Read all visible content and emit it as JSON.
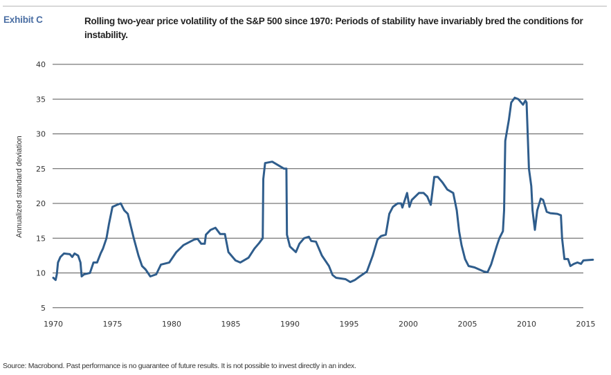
{
  "header": {
    "exhibit_label": "Exhibit C",
    "title": "Rolling two-year price volatility of the S&P 500 since 1970: Periods of stability have invariably bred the conditions for instability."
  },
  "footer": {
    "source": "Source: Macrobond. Past performance is no guarantee of future results. It is not possible to invest directly in an index."
  },
  "colors": {
    "line": "#2f5d8c",
    "exhibit": "#4a6ea3",
    "grid": "#555555"
  },
  "chart_data": {
    "type": "line",
    "title": "Rolling two-year price volatility of the S&P 500 since 1970",
    "xlabel": "",
    "ylabel": "Annualized standard deviation",
    "xlim": [
      1970,
      2015.6
    ],
    "ylim": [
      5,
      40
    ],
    "x_ticks": [
      1970,
      1975,
      1980,
      1985,
      1990,
      1995,
      2000,
      2005,
      2010,
      2015
    ],
    "y_ticks": [
      5,
      10,
      15,
      20,
      25,
      30,
      35,
      40
    ],
    "grid": "horizontal",
    "legend": "none",
    "series": [
      {
        "name": "S&P 500 rolling two-year volatility",
        "points": [
          [
            1970.0,
            9.3
          ],
          [
            1970.2,
            9.0
          ],
          [
            1970.3,
            9.8
          ],
          [
            1970.4,
            11.5
          ],
          [
            1970.6,
            12.3
          ],
          [
            1970.9,
            12.8
          ],
          [
            1971.4,
            12.7
          ],
          [
            1971.6,
            12.3
          ],
          [
            1971.8,
            12.8
          ],
          [
            1972.1,
            12.5
          ],
          [
            1972.3,
            11.5
          ],
          [
            1972.4,
            9.5
          ],
          [
            1972.6,
            9.8
          ],
          [
            1973.1,
            10.0
          ],
          [
            1973.4,
            11.5
          ],
          [
            1973.7,
            11.5
          ],
          [
            1974.0,
            12.8
          ],
          [
            1974.2,
            13.5
          ],
          [
            1974.5,
            15.0
          ],
          [
            1974.7,
            17.0
          ],
          [
            1975.0,
            19.5
          ],
          [
            1975.4,
            19.8
          ],
          [
            1975.7,
            20.0
          ],
          [
            1976.0,
            19.0
          ],
          [
            1976.3,
            18.5
          ],
          [
            1976.8,
            15.0
          ],
          [
            1977.2,
            12.5
          ],
          [
            1977.5,
            11.0
          ],
          [
            1977.8,
            10.5
          ],
          [
            1978.2,
            9.5
          ],
          [
            1978.7,
            9.8
          ],
          [
            1979.1,
            11.2
          ],
          [
            1979.8,
            11.5
          ],
          [
            1980.4,
            13.0
          ],
          [
            1981.0,
            14.0
          ],
          [
            1981.9,
            14.8
          ],
          [
            1982.2,
            14.9
          ],
          [
            1982.5,
            14.2
          ],
          [
            1982.8,
            14.2
          ],
          [
            1982.9,
            15.5
          ],
          [
            1983.3,
            16.2
          ],
          [
            1983.7,
            16.5
          ],
          [
            1984.1,
            15.6
          ],
          [
            1984.5,
            15.6
          ],
          [
            1984.8,
            13.0
          ],
          [
            1985.4,
            11.8
          ],
          [
            1985.8,
            11.5
          ],
          [
            1986.5,
            12.2
          ],
          [
            1987.0,
            13.5
          ],
          [
            1987.4,
            14.3
          ],
          [
            1987.7,
            15.0
          ],
          [
            1987.75,
            23.5
          ],
          [
            1987.9,
            25.8
          ],
          [
            1988.5,
            26.0
          ],
          [
            1988.9,
            25.6
          ],
          [
            1989.5,
            25.0
          ],
          [
            1989.7,
            25.0
          ],
          [
            1989.75,
            15.5
          ],
          [
            1990.0,
            13.8
          ],
          [
            1990.5,
            13.0
          ],
          [
            1990.8,
            14.2
          ],
          [
            1991.2,
            15.0
          ],
          [
            1991.6,
            15.2
          ],
          [
            1991.8,
            14.6
          ],
          [
            1992.2,
            14.5
          ],
          [
            1992.7,
            12.5
          ],
          [
            1993.3,
            11.0
          ],
          [
            1993.6,
            9.7
          ],
          [
            1993.9,
            9.3
          ],
          [
            1994.7,
            9.1
          ],
          [
            1995.1,
            8.7
          ],
          [
            1995.5,
            9.0
          ],
          [
            1995.9,
            9.5
          ],
          [
            1996.5,
            10.2
          ],
          [
            1997.0,
            12.5
          ],
          [
            1997.4,
            14.8
          ],
          [
            1997.7,
            15.3
          ],
          [
            1998.1,
            15.5
          ],
          [
            1998.4,
            18.5
          ],
          [
            1998.7,
            19.5
          ],
          [
            1999.1,
            20.0
          ],
          [
            1999.4,
            20.0
          ],
          [
            1999.5,
            19.4
          ],
          [
            1999.9,
            21.5
          ],
          [
            2000.1,
            19.5
          ],
          [
            2000.3,
            20.5
          ],
          [
            2000.9,
            21.5
          ],
          [
            2001.3,
            21.5
          ],
          [
            2001.6,
            21.0
          ],
          [
            2001.9,
            19.8
          ],
          [
            2002.2,
            23.8
          ],
          [
            2002.5,
            23.8
          ],
          [
            2002.9,
            23.0
          ],
          [
            2003.3,
            22.0
          ],
          [
            2003.8,
            21.5
          ],
          [
            2004.1,
            19.0
          ],
          [
            2004.3,
            16.0
          ],
          [
            2004.5,
            14.0
          ],
          [
            2004.8,
            12.0
          ],
          [
            2005.1,
            11.0
          ],
          [
            2005.6,
            10.8
          ],
          [
            2006.0,
            10.5
          ],
          [
            2006.4,
            10.2
          ],
          [
            2006.7,
            10.1
          ],
          [
            2007.0,
            11.2
          ],
          [
            2007.5,
            14.0
          ],
          [
            2007.7,
            15.0
          ],
          [
            2008.0,
            16.0
          ],
          [
            2008.1,
            19.0
          ],
          [
            2008.2,
            29.0
          ],
          [
            2008.5,
            32.0
          ],
          [
            2008.7,
            34.5
          ],
          [
            2009.0,
            35.2
          ],
          [
            2009.3,
            35.0
          ],
          [
            2009.7,
            34.2
          ],
          [
            2009.9,
            34.8
          ],
          [
            2010.0,
            34.5
          ],
          [
            2010.2,
            25.0
          ],
          [
            2010.4,
            22.5
          ],
          [
            2010.5,
            19.0
          ],
          [
            2010.7,
            16.2
          ],
          [
            2010.9,
            19.0
          ],
          [
            2011.2,
            20.7
          ],
          [
            2011.4,
            20.5
          ],
          [
            2011.7,
            18.8
          ],
          [
            2012.0,
            18.6
          ],
          [
            2012.6,
            18.5
          ],
          [
            2012.9,
            18.3
          ],
          [
            2013.0,
            15.0
          ],
          [
            2013.2,
            12.0
          ],
          [
            2013.5,
            12.0
          ],
          [
            2013.7,
            11.0
          ],
          [
            2014.0,
            11.3
          ],
          [
            2014.3,
            11.5
          ],
          [
            2014.6,
            11.3
          ],
          [
            2014.8,
            11.8
          ],
          [
            2015.6,
            11.9
          ]
        ]
      }
    ]
  }
}
